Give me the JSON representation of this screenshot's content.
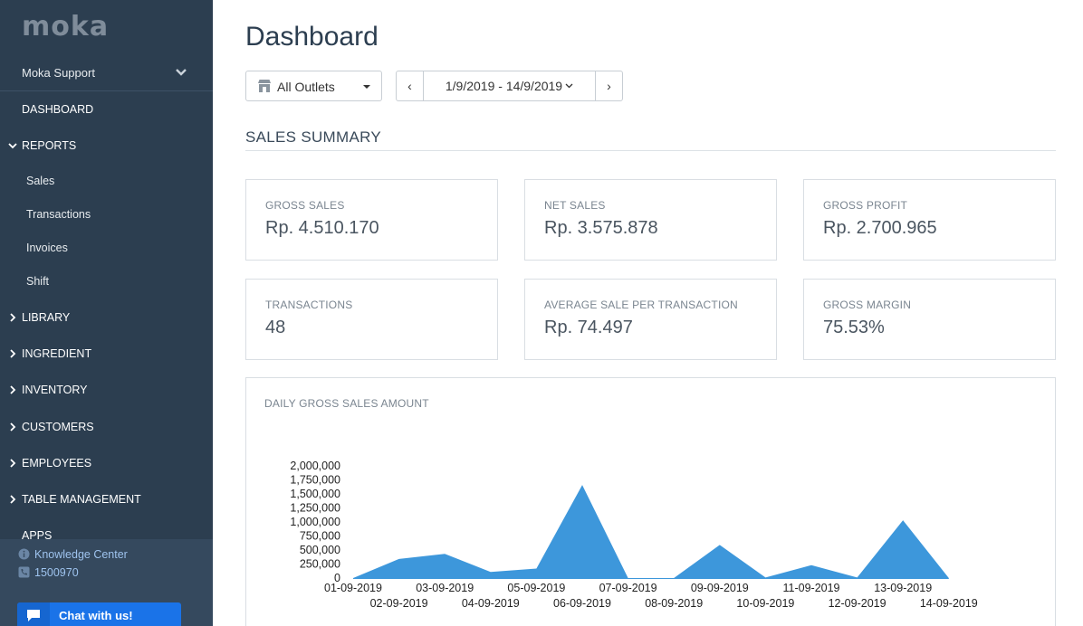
{
  "app": {
    "logo": "moka"
  },
  "sidebar": {
    "account": "Moka Support",
    "nav": {
      "dashboard": "DASHBOARD",
      "reports": "REPORTS",
      "reports_sub": [
        "Sales",
        "Transactions",
        "Invoices",
        "Shift"
      ],
      "library": "LIBRARY",
      "ingredient": "INGREDIENT",
      "inventory": "INVENTORY",
      "customers": "CUSTOMERS",
      "employees": "EMPLOYEES",
      "table_management": "TABLE MANAGEMENT",
      "apps": "APPS"
    },
    "knowledge_center": "Knowledge Center",
    "phone": "1500970",
    "chat_button": "Chat with us!"
  },
  "header": {
    "title": "Dashboard",
    "outlet_select": "All Outlets",
    "date_range": "1/9/2019 - 14/9/2019",
    "prev_label": "‹",
    "next_label": "›"
  },
  "summary": {
    "title": "SALES SUMMARY",
    "cards": [
      {
        "label": "GROSS SALES",
        "value": "Rp. 4.510.170"
      },
      {
        "label": "NET SALES",
        "value": "Rp. 3.575.878"
      },
      {
        "label": "GROSS PROFIT",
        "value": "Rp. 2.700.965"
      },
      {
        "label": "TRANSACTIONS",
        "value": "48"
      },
      {
        "label": "AVERAGE SALE PER TRANSACTION",
        "value": "Rp. 74.497"
      },
      {
        "label": "GROSS MARGIN",
        "value": "75.53%"
      }
    ]
  },
  "colors": {
    "sidebar_bg": "#2c3e50",
    "accent": "#1a73e8",
    "chart_fill": "#3d97db"
  },
  "chart_data": {
    "type": "area",
    "title": "DAILY GROSS SALES AMOUNT",
    "categories": [
      "01-09-2019",
      "02-09-2019",
      "03-09-2019",
      "04-09-2019",
      "05-09-2019",
      "06-09-2019",
      "07-09-2019",
      "08-09-2019",
      "09-09-2019",
      "10-09-2019",
      "11-09-2019",
      "12-09-2019",
      "13-09-2019",
      "14-09-2019"
    ],
    "values": [
      0,
      340000,
      430000,
      110000,
      170000,
      1660000,
      0,
      0,
      590000,
      10000,
      230000,
      10000,
      1030000,
      0
    ],
    "y_ticks": [
      "0",
      "250,000",
      "500,000",
      "750,000",
      "1,000,000",
      "1,250,000",
      "1,500,000",
      "1,750,000",
      "2,000,000"
    ],
    "ylim": [
      0,
      2000000
    ],
    "xlabel": "",
    "ylabel": ""
  }
}
